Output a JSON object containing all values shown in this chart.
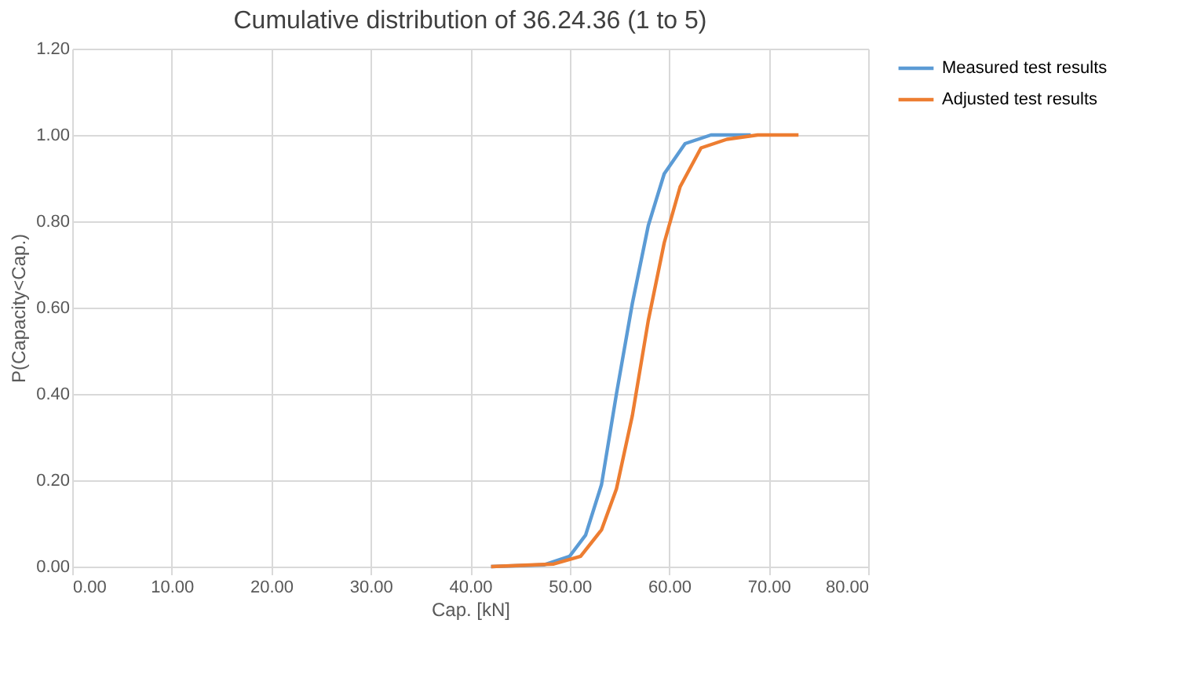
{
  "chart_data": {
    "type": "line",
    "title": "Cumulative distribution of 36.24.36 (1 to 5)",
    "xlabel": "Cap. [kN]",
    "ylabel": "P(Capacity<Cap.)",
    "xlim": [
      0,
      80
    ],
    "xticks": [
      {
        "value": 0,
        "label": "0.00"
      },
      {
        "value": 10,
        "label": "10.00"
      },
      {
        "value": 20,
        "label": "20.00"
      },
      {
        "value": 30,
        "label": "30.00"
      },
      {
        "value": 40,
        "label": "40.00"
      },
      {
        "value": 50,
        "label": "50.00"
      },
      {
        "value": 60,
        "label": "60.00"
      },
      {
        "value": 70,
        "label": "70.00"
      },
      {
        "value": 80,
        "label": "80.00"
      }
    ],
    "ylim": [
      0,
      1.2
    ],
    "yticks": [
      {
        "value": 0,
        "label": "0.00"
      },
      {
        "value": 0.2,
        "label": "0.20"
      },
      {
        "value": 0.4,
        "label": "0.40"
      },
      {
        "value": 0.6,
        "label": "0.60"
      },
      {
        "value": 0.8,
        "label": "0.80"
      },
      {
        "value": 1.0,
        "label": "1.00"
      },
      {
        "value": 1.2,
        "label": "1.20"
      }
    ],
    "grid": true,
    "legend": "right",
    "marker": "none",
    "line_style": "solid",
    "series": [
      {
        "name": "Measured test results",
        "color": "#5b9bd5",
        "x": [
          42.1,
          47.4,
          50.0,
          51.6,
          53.2,
          54.7,
          56.3,
          57.9,
          59.5,
          61.6,
          64.2,
          68.2
        ],
        "values": [
          0,
          0.004,
          0.024,
          0.073,
          0.19,
          0.4,
          0.61,
          0.79,
          0.91,
          0.98,
          1.0,
          1.0
        ]
      },
      {
        "name": "Adjusted test results",
        "color": "#ed7d31",
        "x": [
          42.1,
          48.4,
          51.1,
          53.2,
          54.7,
          56.3,
          57.9,
          59.5,
          61.1,
          63.2,
          65.8,
          68.9,
          73.0
        ],
        "values": [
          0,
          0.006,
          0.024,
          0.085,
          0.18,
          0.35,
          0.57,
          0.75,
          0.88,
          0.97,
          0.99,
          1.0,
          1.0
        ]
      }
    ]
  }
}
